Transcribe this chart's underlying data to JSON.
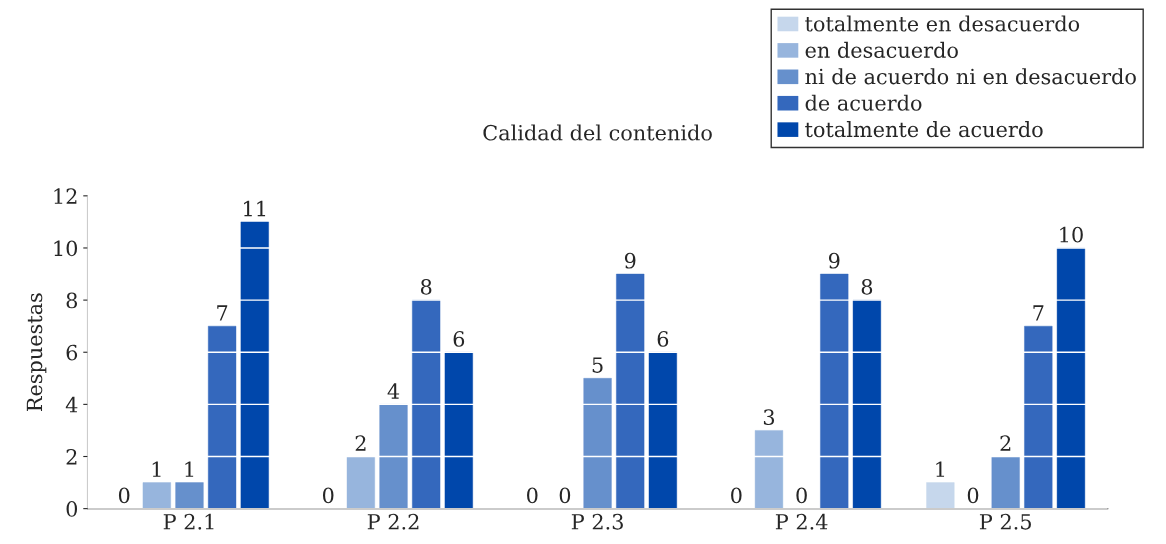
{
  "chart_data": {
    "type": "bar",
    "title": "Calidad del contenido",
    "ylabel": "Respuestas",
    "categories": [
      "P 2.1",
      "P 2.2",
      "P 2.3",
      "P 2.4",
      "P 2.5"
    ],
    "series": [
      {
        "name": "totalmente en desacuerdo",
        "color": "#c6d7ec",
        "values": [
          0,
          0,
          0,
          0,
          1
        ]
      },
      {
        "name": "en desacuerdo",
        "color": "#97b5dd",
        "values": [
          1,
          2,
          0,
          3,
          0
        ]
      },
      {
        "name": "ni de acuerdo ni en desacuerdo",
        "color": "#6690cc",
        "values": [
          1,
          4,
          5,
          0,
          2
        ]
      },
      {
        "name": "de acuerdo",
        "color": "#3468bd",
        "values": [
          7,
          8,
          9,
          9,
          7
        ]
      },
      {
        "name": "totalmente de acuerdo",
        "color": "#0047ab",
        "values": [
          11,
          6,
          6,
          8,
          10
        ]
      }
    ],
    "ylim": [
      0,
      12
    ],
    "yticks": [
      0,
      2,
      4,
      6,
      8,
      10,
      12
    ],
    "grid": "y",
    "legend": "top right",
    "data_labels": true
  }
}
